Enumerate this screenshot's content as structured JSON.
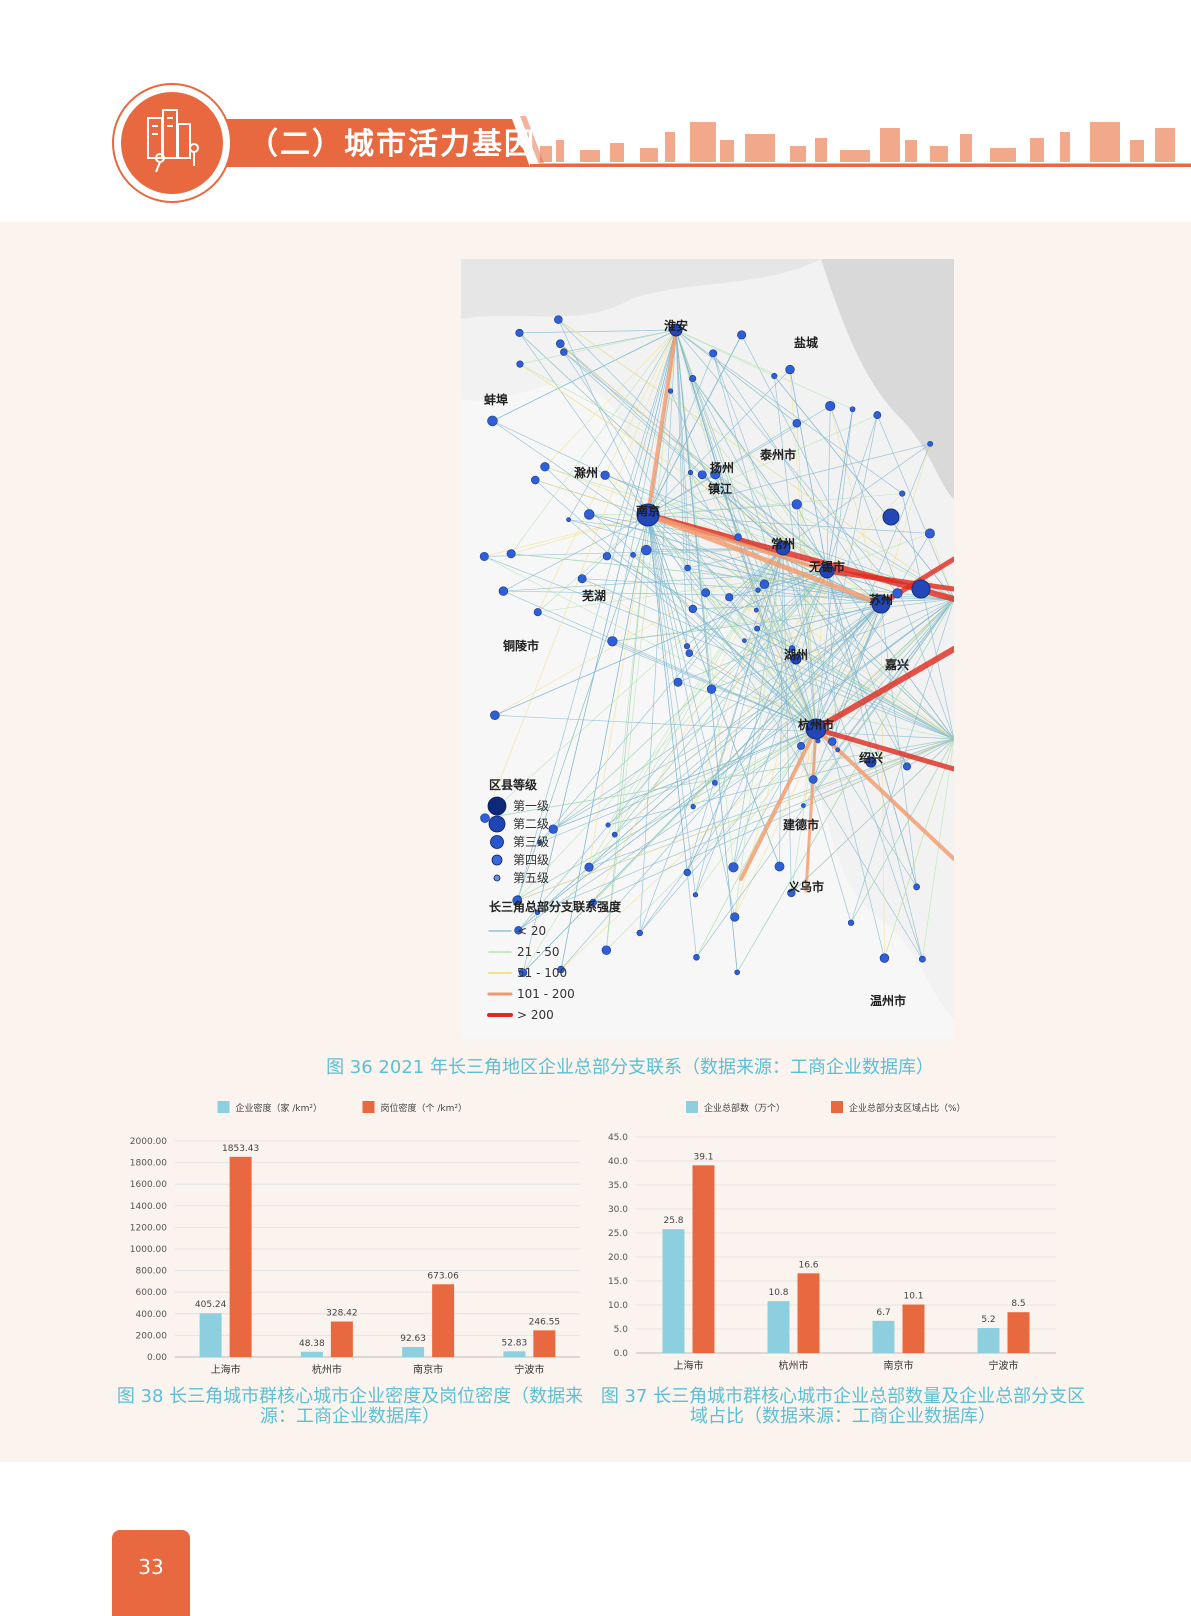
{
  "header": {
    "section_title": "（二）城市活力基因",
    "accent_color": "#e8683f",
    "icon": "city-people-icon"
  },
  "map_figure": {
    "caption": "图 36  2021 年长三角地区企业总部分支联系（数据来源：工商企业数据库）",
    "cities": [
      "淮安",
      "盐城",
      "蚌埠",
      "滁州",
      "扬州",
      "泰州市",
      "镇江",
      "南京",
      "常州",
      "无锡市",
      "苏州",
      "芜湖",
      "铜陵市",
      "湖州",
      "嘉兴",
      "杭州市",
      "绍兴",
      "建德市",
      "义乌市",
      "温州市"
    ],
    "legend_level_title": "区县等级",
    "legend_levels": [
      "第一级",
      "第二级",
      "第三级",
      "第四级",
      "第五级"
    ],
    "legend_link_title": "长三角总部分支联系强度",
    "legend_links": [
      "< 20",
      "21 - 50",
      "51 - 100",
      "101 - 200",
      "> 200"
    ],
    "link_colors": [
      "#7fb6cf",
      "#b5e3b0",
      "#f3e08c",
      "#f39a6b",
      "#e02a1e"
    ]
  },
  "charts": {
    "left_caption": "图 38  长三角城市群核心城市企业密度及岗位密度（数据来源：工商企业数据库）",
    "right_caption": "图 37  长三角城市群核心城市企业总部数量及企业总部分支区域占比（数据来源：工商企业数据库）"
  },
  "chart_data": [
    {
      "type": "bar",
      "categories": [
        "上海市",
        "杭州市",
        "南京市",
        "宁波市"
      ],
      "series": [
        {
          "name": "企业密度（家 /km²）",
          "values": [
            405.24,
            48.38,
            92.63,
            52.83
          ],
          "color": "#8ecfdf"
        },
        {
          "name": "岗位密度（个 /km²）",
          "values": [
            1853.43,
            328.42,
            673.06,
            246.55
          ],
          "color": "#e8683f"
        }
      ],
      "ylim": [
        0,
        2000
      ],
      "yticks": [
        "0.00",
        "200.00",
        "400.00",
        "600.00",
        "800.00",
        "1000.00",
        "1200.00",
        "1400.00",
        "1600.00",
        "1800.00",
        "2000.00"
      ],
      "legend_position": "top-center",
      "grid": true
    },
    {
      "type": "bar",
      "categories": [
        "上海市",
        "杭州市",
        "南京市",
        "宁波市"
      ],
      "series": [
        {
          "name": "企业总部数（万个）",
          "values": [
            25.8,
            10.8,
            6.7,
            5.2
          ],
          "color": "#8ecfdf"
        },
        {
          "name": "企业总部分支区域占比（%）",
          "values": [
            39.1,
            16.6,
            10.1,
            8.5
          ],
          "color": "#e8683f"
        }
      ],
      "ylim": [
        0,
        45
      ],
      "yticks": [
        "0.0",
        "5.0",
        "10.0",
        "15.0",
        "20.0",
        "25.0",
        "30.0",
        "35.0",
        "40.0",
        "45.0"
      ],
      "legend_position": "top-center",
      "grid": true
    }
  ],
  "page": {
    "number": "33"
  }
}
